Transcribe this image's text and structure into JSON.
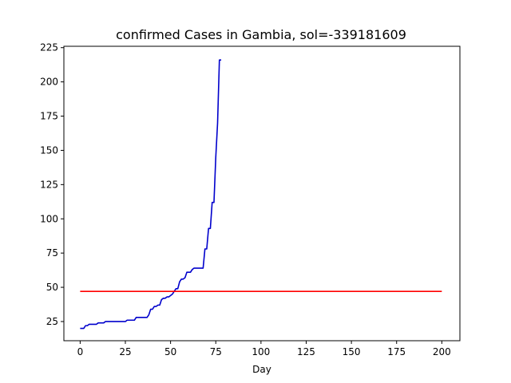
{
  "chart_data": {
    "type": "line",
    "title": "confirmed Cases in Gambia, sol=-339181609",
    "xlabel": "Day",
    "ylabel": "",
    "xlim": [
      -9,
      210
    ],
    "ylim": [
      11,
      226
    ],
    "xticks": [
      0,
      25,
      50,
      75,
      100,
      125,
      150,
      175,
      200
    ],
    "yticks": [
      25,
      50,
      75,
      100,
      125,
      150,
      175,
      200,
      225
    ],
    "grid": false,
    "series": [
      {
        "color": "#0000cc",
        "x": [
          0,
          2,
          3,
          4,
          5,
          6,
          7,
          8,
          9,
          10,
          11,
          12,
          13,
          14,
          15,
          16,
          17,
          18,
          19,
          20,
          21,
          22,
          23,
          24,
          25,
          26,
          27,
          28,
          29,
          30,
          31,
          32,
          33,
          34,
          35,
          36,
          37,
          38,
          39,
          40,
          41,
          42,
          43,
          44,
          45,
          46,
          47,
          48,
          49,
          50,
          51,
          52,
          53,
          54,
          55,
          56,
          57,
          58,
          59,
          60,
          61,
          62,
          63,
          64,
          65,
          66,
          67,
          68,
          69,
          70,
          71,
          72,
          73,
          74,
          75,
          76,
          77,
          78
        ],
        "y": [
          20,
          20,
          22,
          22,
          23,
          23,
          23,
          23,
          23,
          24,
          24,
          24,
          24,
          25,
          25,
          25,
          25,
          25,
          25,
          25,
          25,
          25,
          25,
          25,
          25,
          26,
          26,
          26,
          26,
          26,
          28,
          28,
          28,
          28,
          28,
          28,
          28,
          30,
          34,
          34,
          36,
          36,
          37,
          37,
          41,
          42,
          42,
          43,
          43,
          44,
          45,
          47,
          49,
          49,
          54,
          56,
          56,
          57,
          61,
          61,
          61,
          63,
          64,
          64,
          64,
          64,
          64,
          64,
          78,
          78,
          93,
          93,
          112,
          112,
          145,
          170,
          216,
          216
        ]
      },
      {
        "color": "#ff0000",
        "x": [
          0,
          200
        ],
        "y": [
          47,
          47
        ]
      }
    ]
  }
}
